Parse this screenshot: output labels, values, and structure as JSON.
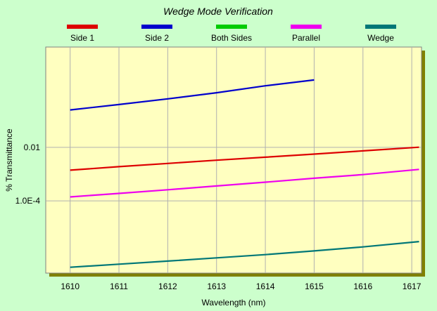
{
  "chart_data": {
    "type": "line",
    "title": "Wedge Mode Verification",
    "xlabel": "Wavelength (nm)",
    "ylabel": "% Transmittance",
    "x_scale": "linear",
    "y_scale": "log",
    "xlim": [
      1609.5,
      1617.2
    ],
    "ylim_log10": [
      -6.7,
      1.75
    ],
    "x_ticks": [
      1610,
      1611,
      1612,
      1613,
      1614,
      1615,
      1616,
      1617
    ],
    "x_tick_labels": [
      "1610",
      "1611",
      "1612",
      "1613",
      "1614",
      "1615",
      "1616",
      "1617"
    ],
    "y_ticks": [
      0.01,
      0.0001
    ],
    "y_tick_labels": [
      "0.01",
      "1.0E-4"
    ],
    "grid": true,
    "legend_position": "top",
    "colors": {
      "background": "#ccffcc",
      "plot_area": "#ffffc0",
      "plot_shadow": "#808000",
      "grid": "#b0b0b0"
    },
    "series": [
      {
        "name": "Side 1",
        "color": "#dd0000",
        "x": [
          1610,
          1611,
          1612,
          1613,
          1614,
          1615,
          1616,
          1617.15
        ],
        "values": [
          0.0014,
          0.0019,
          0.0025,
          0.0033,
          0.0043,
          0.0056,
          0.0074,
          0.0101
        ]
      },
      {
        "name": "Side 2",
        "color": "#0000cc",
        "x": [
          1610,
          1611,
          1612,
          1613,
          1614,
          1615
        ],
        "values": [
          0.25,
          0.4,
          0.65,
          1.1,
          2.0,
          3.3
        ]
      },
      {
        "name": "Both Sides",
        "color": "#00cc00",
        "x": [],
        "values": []
      },
      {
        "name": "Parallel",
        "color": "#ee00ee",
        "x": [
          1610,
          1611,
          1612,
          1613,
          1614,
          1615,
          1616,
          1617.15
        ],
        "values": [
          0.00014,
          0.00019,
          0.00026,
          0.00036,
          0.0005,
          0.0007,
          0.00096,
          0.0015
        ]
      },
      {
        "name": "Wedge",
        "color": "#007777",
        "x": [
          1610,
          1611,
          1612,
          1613,
          1614,
          1615,
          1616,
          1617.15
        ],
        "values": [
          3.3e-07,
          4.3e-07,
          5.6e-07,
          7.4e-07,
          9.8e-07,
          1.35e-06,
          1.9e-06,
          3e-06
        ]
      }
    ]
  }
}
